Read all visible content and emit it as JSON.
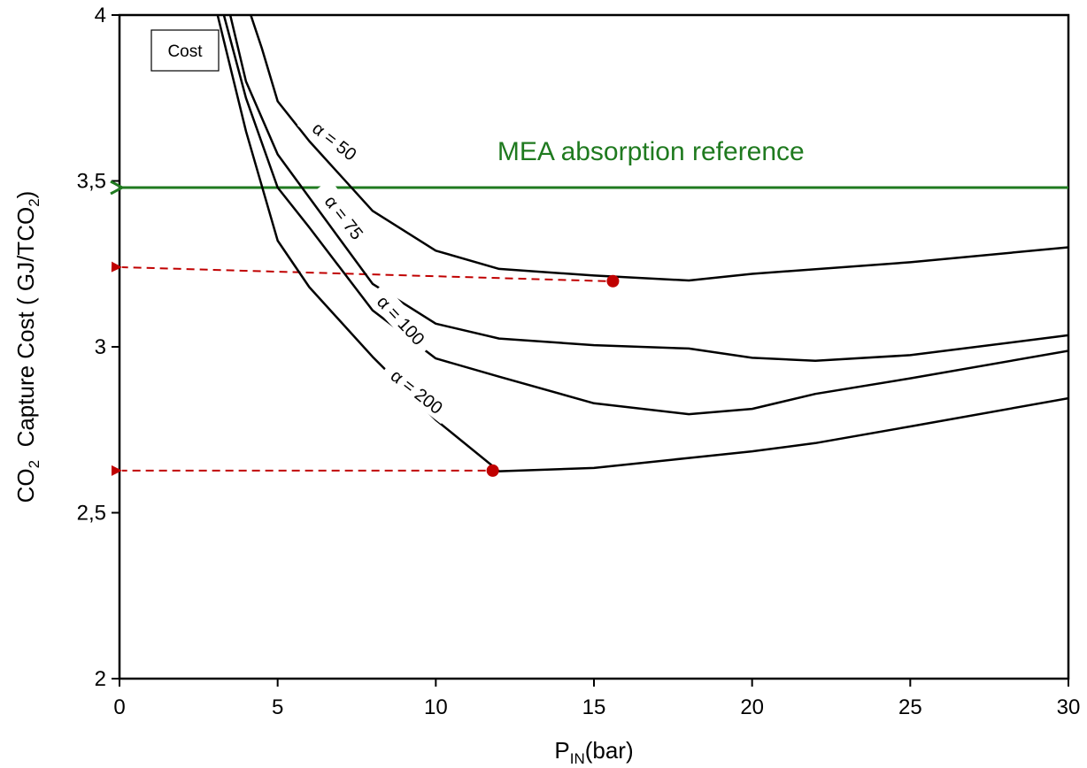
{
  "chart_data": {
    "type": "line",
    "xlabel_main": "P",
    "xlabel_sub": "IN",
    "xlabel_unit": "(bar)",
    "ylabel_co": "CO",
    "ylabel_co_sub": "2",
    "ylabel_mid": "  Capture Cost ( GJ/TCO",
    "ylabel_sub2": "2",
    "ylabel_end": ")",
    "xlim": [
      0,
      30
    ],
    "ylim": [
      2,
      4
    ],
    "xticks": [
      0,
      5,
      10,
      15,
      20,
      25,
      30
    ],
    "xtick_labels": [
      "0",
      "5",
      "10",
      "15",
      "20",
      "25",
      "30"
    ],
    "yticks": [
      2,
      2.5,
      3,
      3.5,
      4
    ],
    "ytick_labels": [
      "2",
      "2,5",
      "3",
      "3,5",
      "4"
    ],
    "legend_label": "Cost",
    "grid": false,
    "series": [
      {
        "name": "α = 50",
        "color": "#000000",
        "x": [
          4.15,
          4.5,
          5,
          6,
          8,
          10,
          12,
          15,
          18,
          20,
          25,
          30
        ],
        "y": [
          4.0,
          3.9,
          3.74,
          3.62,
          3.41,
          3.29,
          3.235,
          3.215,
          3.2,
          3.22,
          3.255,
          3.3
        ]
      },
      {
        "name": "α = 75",
        "color": "#000000",
        "x": [
          3.5,
          4,
          5,
          6,
          8,
          10,
          12,
          15,
          18,
          20,
          22,
          25,
          30
        ],
        "y": [
          4.0,
          3.8,
          3.58,
          3.45,
          3.19,
          3.07,
          3.025,
          3.005,
          2.995,
          2.967,
          2.958,
          2.975,
          3.035
        ]
      },
      {
        "name": "α = 100",
        "color": "#000000",
        "x": [
          3.3,
          4,
          5,
          6,
          8,
          10,
          12,
          15,
          18,
          20,
          22,
          25,
          30
        ],
        "y": [
          4.0,
          3.75,
          3.48,
          3.36,
          3.11,
          2.965,
          2.91,
          2.83,
          2.797,
          2.813,
          2.858,
          2.905,
          2.988
        ]
      },
      {
        "name": "α = 200",
        "color": "#000000",
        "x": [
          3.1,
          4,
          5,
          6,
          8,
          10,
          12,
          15,
          18,
          20,
          22,
          25,
          30
        ],
        "y": [
          4.0,
          3.65,
          3.32,
          3.18,
          2.97,
          2.78,
          2.625,
          2.635,
          2.665,
          2.685,
          2.71,
          2.76,
          2.845
        ]
      }
    ],
    "curve_labels": [
      {
        "text": "α = 50",
        "x": 6.8,
        "y": 3.62,
        "angle": 38
      },
      {
        "text": "α = 75",
        "x": 7.1,
        "y": 3.39,
        "angle": 52
      },
      {
        "text": "α = 100",
        "x": 8.9,
        "y": 3.08,
        "angle": 47
      },
      {
        "text": "α = 200",
        "x": 9.4,
        "y": 2.865,
        "angle": 38
      }
    ],
    "reference": {
      "label": "MEA absorption reference",
      "y": 3.48,
      "color": "#1f7a1f"
    },
    "markers": [
      {
        "x": 15.6,
        "y": 3.198,
        "arrow_to_y": 3.24,
        "color": "#c00000"
      },
      {
        "x": 11.8,
        "y": 2.627,
        "arrow_to_y": 2.627,
        "color": "#c00000"
      }
    ]
  }
}
